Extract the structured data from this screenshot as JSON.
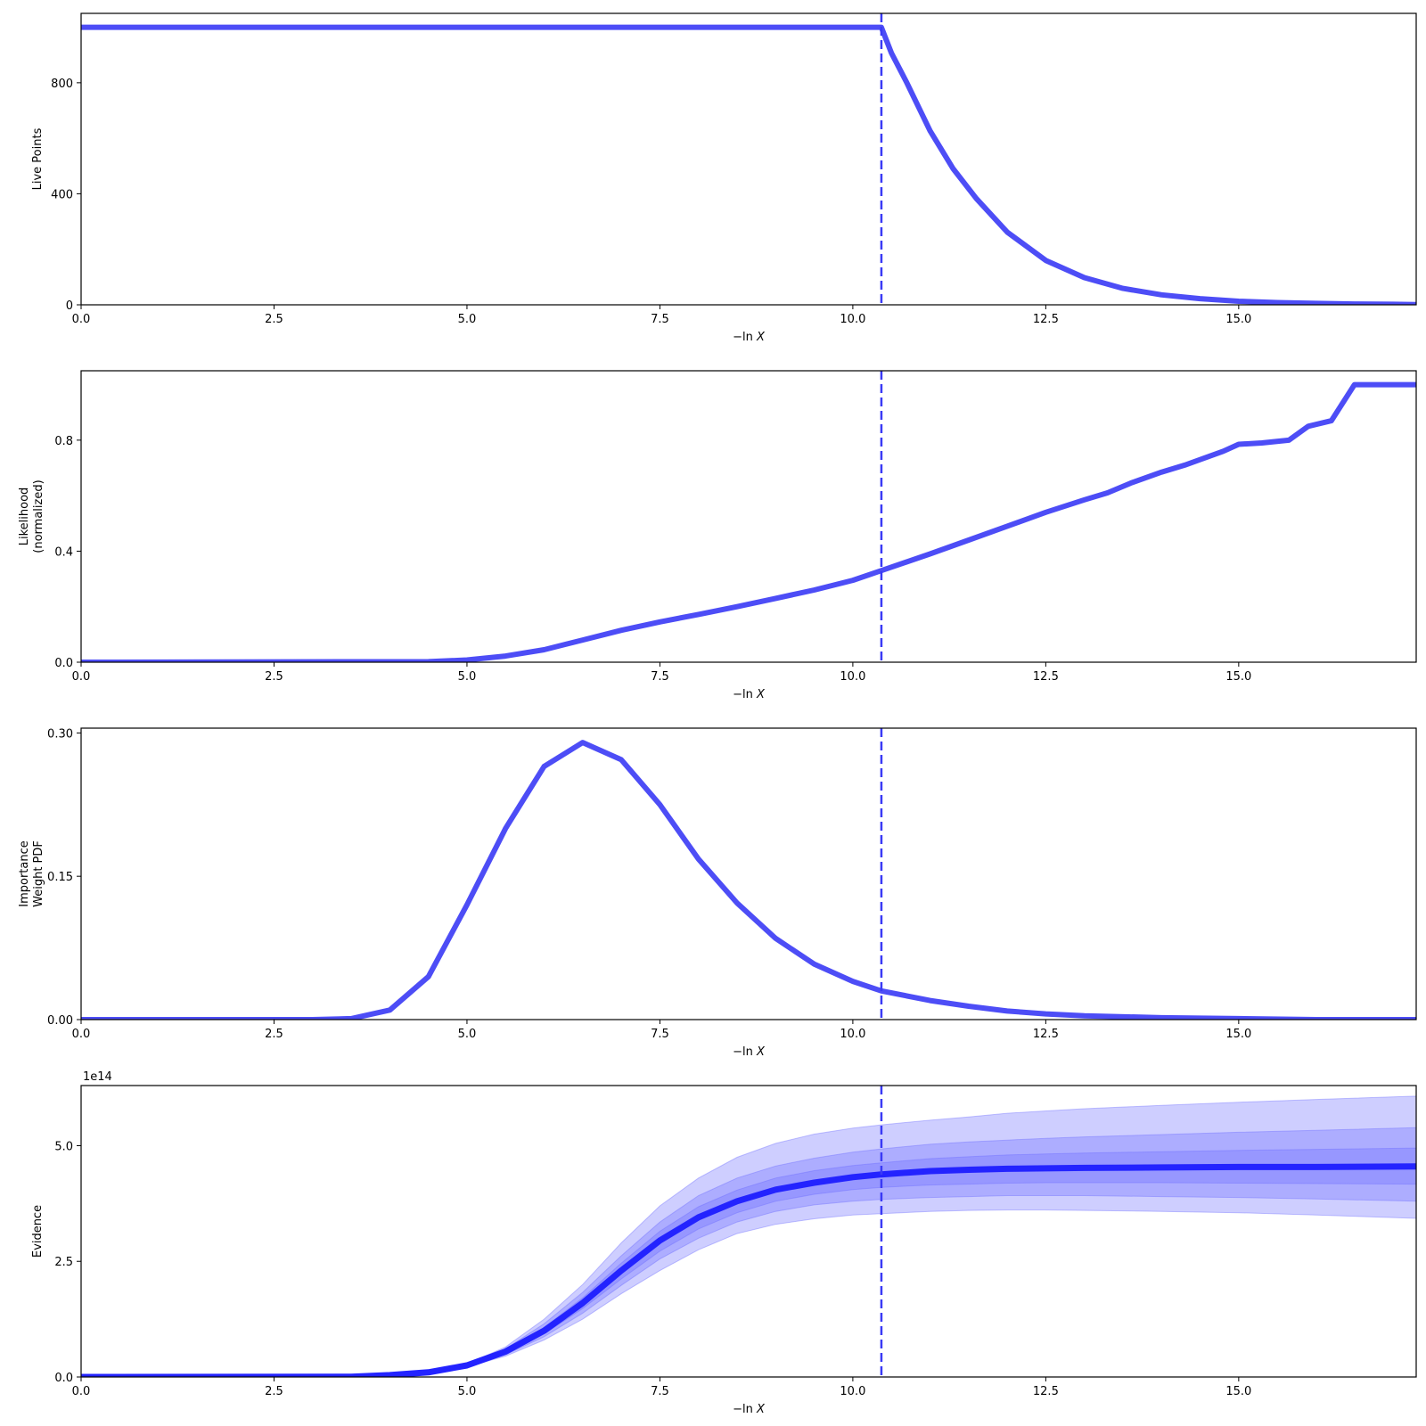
{
  "figure": {
    "colors": {
      "line": "#3a3af5",
      "evidence_line": "#2323ff",
      "band": "#6b6bff",
      "axis": "#000000"
    },
    "threshold_x": 10.37
  },
  "chart_data": [
    {
      "type": "line",
      "ylabel": [
        "Live Points"
      ],
      "xlabel": "−ln X",
      "xlim": [
        0,
        17.3
      ],
      "ylim": [
        0,
        1050
      ],
      "xticks": [
        0,
        2.5,
        5,
        7.5,
        10,
        12.5,
        15
      ],
      "xtick_labels": [
        "0.0",
        "2.5",
        "5.0",
        "7.5",
        "10.0",
        "12.5",
        "15.0"
      ],
      "yticks": [
        0,
        400,
        800
      ],
      "ytick_labels": [
        "0",
        "400",
        "800"
      ],
      "grid": false,
      "vline_x": 10.37,
      "series": [
        {
          "x": [
            0,
            10.37,
            10.5,
            10.7,
            11.0,
            11.3,
            11.6,
            12.0,
            12.5,
            13.0,
            13.5,
            14.0,
            14.5,
            15.0,
            15.5,
            16.0,
            16.5,
            17.0,
            17.3
          ],
          "y": [
            1000,
            1000,
            907,
            800,
            627,
            490,
            383,
            262,
            160,
            98,
            59,
            36,
            22,
            13,
            8,
            5,
            3,
            2,
            1
          ]
        }
      ]
    },
    {
      "type": "line",
      "ylabel": [
        "Likelihood",
        "(normalized)"
      ],
      "xlabel": "−ln X",
      "xlim": [
        0,
        17.3
      ],
      "ylim": [
        0,
        1.05
      ],
      "xticks": [
        0,
        2.5,
        5,
        7.5,
        10,
        12.5,
        15
      ],
      "xtick_labels": [
        "0.0",
        "2.5",
        "5.0",
        "7.5",
        "10.0",
        "12.5",
        "15.0"
      ],
      "yticks": [
        0,
        0.4,
        0.8
      ],
      "ytick_labels": [
        "0.0",
        "0.4",
        "0.8"
      ],
      "grid": false,
      "vline_x": 10.37,
      "series": [
        {
          "x": [
            0,
            4.5,
            5.0,
            5.5,
            6.0,
            6.5,
            7.0,
            7.5,
            8.0,
            8.5,
            9.0,
            9.5,
            10.0,
            10.37,
            11.0,
            11.5,
            12.0,
            12.5,
            13.0,
            13.3,
            13.6,
            14.0,
            14.3,
            14.5,
            14.8,
            15.0,
            15.3,
            15.65,
            15.9,
            16.2,
            16.5,
            17.3
          ],
          "y": [
            0,
            0.002,
            0.008,
            0.022,
            0.045,
            0.08,
            0.115,
            0.145,
            0.172,
            0.2,
            0.23,
            0.26,
            0.295,
            0.33,
            0.39,
            0.44,
            0.49,
            0.54,
            0.585,
            0.61,
            0.645,
            0.685,
            0.71,
            0.73,
            0.76,
            0.785,
            0.79,
            0.8,
            0.85,
            0.87,
            1.0,
            1.0
          ]
        }
      ]
    },
    {
      "type": "line",
      "ylabel": [
        "Importance",
        "Weight PDF"
      ],
      "xlabel": "−ln X",
      "xlim": [
        0,
        17.3
      ],
      "ylim": [
        0,
        0.305
      ],
      "xticks": [
        0,
        2.5,
        5,
        7.5,
        10,
        12.5,
        15
      ],
      "xtick_labels": [
        "0.0",
        "2.5",
        "5.0",
        "7.5",
        "10.0",
        "12.5",
        "15.0"
      ],
      "yticks": [
        0,
        0.15,
        0.3
      ],
      "ytick_labels": [
        "0.00",
        "0.15",
        "0.30"
      ],
      "grid": false,
      "vline_x": 10.37,
      "series": [
        {
          "x": [
            0,
            3.0,
            3.5,
            4.0,
            4.5,
            5.0,
            5.5,
            6.0,
            6.5,
            7.0,
            7.5,
            8.0,
            8.5,
            9.0,
            9.5,
            10.0,
            10.37,
            11.0,
            11.5,
            12.0,
            12.5,
            13.0,
            14.0,
            15.0,
            16.0,
            17.3
          ],
          "y": [
            0,
            0.0,
            0.001,
            0.01,
            0.045,
            0.12,
            0.2,
            0.265,
            0.29,
            0.272,
            0.225,
            0.168,
            0.122,
            0.085,
            0.058,
            0.04,
            0.03,
            0.02,
            0.014,
            0.009,
            0.006,
            0.004,
            0.002,
            0.001,
            0.0,
            0.0
          ]
        }
      ]
    },
    {
      "type": "area",
      "ylabel": [
        "Evidence"
      ],
      "xlabel": "−ln X",
      "offset_label": "1e14",
      "xlim": [
        0,
        17.3
      ],
      "ylim": [
        0,
        6.3
      ],
      "xticks": [
        0,
        2.5,
        5,
        7.5,
        10,
        12.5,
        15
      ],
      "xtick_labels": [
        "0.0",
        "2.5",
        "5.0",
        "7.5",
        "10.0",
        "12.5",
        "15.0"
      ],
      "yticks": [
        0,
        2.5,
        5
      ],
      "ytick_labels": [
        "0.0",
        "2.5",
        "5.0"
      ],
      "grid": false,
      "vline_x": 10.37,
      "x": [
        0,
        3.5,
        4.0,
        4.5,
        5.0,
        5.5,
        6.0,
        6.5,
        7.0,
        7.5,
        8.0,
        8.5,
        9.0,
        9.5,
        10.0,
        10.37,
        11.0,
        11.5,
        12.0,
        12.5,
        13.0,
        14.0,
        15.0,
        16.0,
        17.3
      ],
      "median": [
        0,
        0.005,
        0.04,
        0.1,
        0.25,
        0.55,
        1.0,
        1.6,
        2.3,
        2.95,
        3.45,
        3.8,
        4.05,
        4.2,
        4.32,
        4.38,
        4.45,
        4.48,
        4.5,
        4.51,
        4.52,
        4.53,
        4.54,
        4.54,
        4.55
      ],
      "bands": [
        {
          "name": "3sigma",
          "lower": [
            0,
            0.005,
            0.035,
            0.09,
            0.22,
            0.45,
            0.8,
            1.25,
            1.8,
            2.3,
            2.75,
            3.1,
            3.3,
            3.42,
            3.5,
            3.53,
            3.58,
            3.6,
            3.61,
            3.61,
            3.6,
            3.58,
            3.55,
            3.5,
            3.43
          ],
          "upper": [
            0,
            0.005,
            0.045,
            0.11,
            0.28,
            0.65,
            1.25,
            2.0,
            2.9,
            3.7,
            4.3,
            4.75,
            5.05,
            5.25,
            5.38,
            5.45,
            5.55,
            5.62,
            5.7,
            5.75,
            5.8,
            5.87,
            5.94,
            6.0,
            6.07
          ]
        },
        {
          "name": "2sigma",
          "lower": [
            0,
            0.005,
            0.037,
            0.093,
            0.23,
            0.48,
            0.87,
            1.38,
            1.98,
            2.55,
            3.0,
            3.35,
            3.58,
            3.72,
            3.8,
            3.84,
            3.88,
            3.9,
            3.92,
            3.92,
            3.92,
            3.9,
            3.88,
            3.85,
            3.8
          ],
          "upper": [
            0,
            0.005,
            0.043,
            0.106,
            0.27,
            0.61,
            1.15,
            1.83,
            2.62,
            3.35,
            3.92,
            4.3,
            4.56,
            4.73,
            4.86,
            4.93,
            5.03,
            5.08,
            5.12,
            5.16,
            5.19,
            5.24,
            5.29,
            5.33,
            5.39
          ]
        },
        {
          "name": "1sigma",
          "lower": [
            0,
            0.005,
            0.038,
            0.096,
            0.24,
            0.51,
            0.93,
            1.48,
            2.12,
            2.72,
            3.2,
            3.55,
            3.8,
            3.95,
            4.05,
            4.1,
            4.15,
            4.17,
            4.19,
            4.2,
            4.2,
            4.2,
            4.19,
            4.18,
            4.17
          ],
          "upper": [
            0,
            0.005,
            0.042,
            0.103,
            0.26,
            0.58,
            1.07,
            1.71,
            2.46,
            3.15,
            3.68,
            4.04,
            4.3,
            4.46,
            4.57,
            4.63,
            4.72,
            4.76,
            4.8,
            4.82,
            4.84,
            4.87,
            4.9,
            4.92,
            4.95
          ]
        }
      ]
    }
  ]
}
